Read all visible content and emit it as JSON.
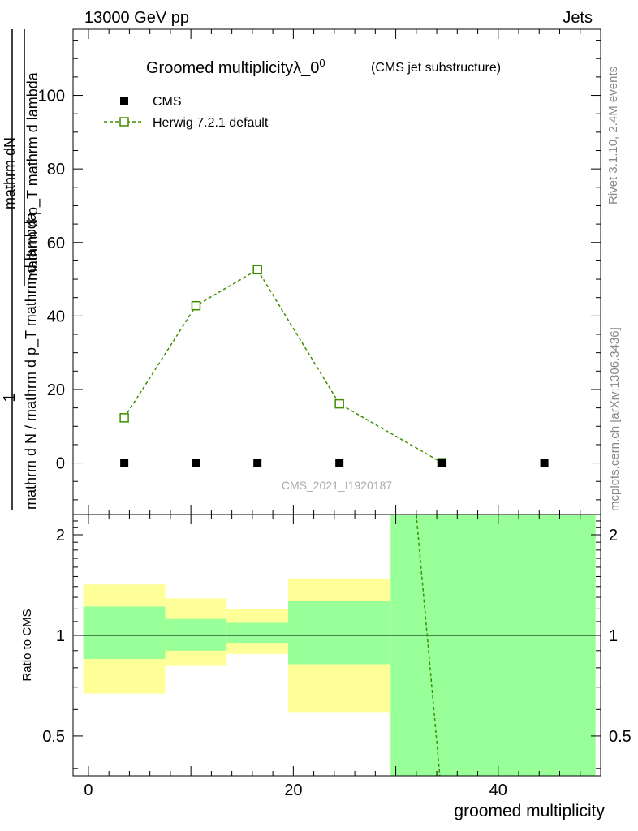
{
  "header": {
    "left": "13000 GeV pp",
    "right": "Jets"
  },
  "side_text": {
    "top": "Rivet 3.1.10,  2.4M events",
    "bottom": "mcplots.cern.ch [arXiv:1306.3436]"
  },
  "watermark": "CMS_2021_I1920187",
  "chart_data": [
    {
      "type": "line",
      "title": "Groomed multiplicityλ_0",
      "title_sup": "0",
      "subtitle": "(CMS jet substructure)",
      "ylabel_top": "1",
      "ylabel_lines": [
        "mathrm d N / mathrm d p_T mathrm d lambda",
        "mathrm dN",
        "mathrm d p_T mathrm d lambda"
      ],
      "xlim": [
        -1.5,
        50
      ],
      "ylim": [
        -14,
        118
      ],
      "yticks": [
        0,
        20,
        40,
        60,
        80,
        100
      ],
      "series": [
        {
          "name": "CMS",
          "marker": "filled-square",
          "color": "#000000",
          "x": [
            3.5,
            10.5,
            16.5,
            24.5,
            34.5,
            44.5
          ],
          "y": [
            0,
            0,
            0,
            0,
            0,
            0
          ]
        },
        {
          "name": "Herwig 7.2.1 default",
          "marker": "open-square",
          "color": "#3d8f00",
          "x": [
            3.5,
            10.5,
            16.5,
            24.5,
            34.5
          ],
          "y": [
            12.3,
            42.8,
            52.6,
            16.1,
            0.1
          ]
        }
      ]
    },
    {
      "type": "area",
      "ylabel": "Ratio to CMS",
      "xlabel": "groomed multiplicity",
      "xlim": [
        -1.5,
        50
      ],
      "ylim": [
        0.38,
        2.3
      ],
      "yscale": "log",
      "xticks": [
        0,
        20,
        40
      ],
      "yticks": [
        0.5,
        1,
        2
      ],
      "bands": [
        {
          "x": [
            -0.5,
            7.5
          ],
          "yellow": [
            0.67,
            1.42
          ],
          "green": [
            0.85,
            1.22
          ]
        },
        {
          "x": [
            7.5,
            13.5
          ],
          "yellow": [
            0.81,
            1.29
          ],
          "green": [
            0.9,
            1.12
          ]
        },
        {
          "x": [
            13.5,
            19.5
          ],
          "yellow": [
            0.88,
            1.2
          ],
          "green": [
            0.95,
            1.09
          ]
        },
        {
          "x": [
            19.5,
            29.5
          ],
          "yellow": [
            0.59,
            1.48
          ],
          "green": [
            0.82,
            1.27
          ]
        },
        {
          "x": [
            29.5,
            49.5
          ],
          "yellow": [
            0.38,
            2.3
          ],
          "green": [
            0.38,
            2.3
          ]
        }
      ],
      "ratio_line": {
        "name": "Herwig 7.2.1 default",
        "x": [
          32.0,
          34.3
        ],
        "y": [
          2.3,
          0.38
        ]
      }
    }
  ],
  "colors": {
    "yellow": "#ffff99",
    "green": "#99ff99",
    "herwig": "#3d8f00"
  }
}
